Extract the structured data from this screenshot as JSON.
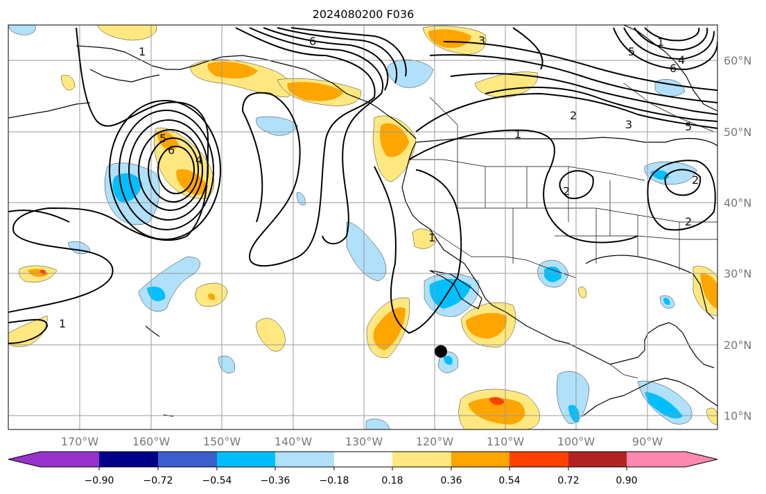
{
  "title": "2024080200 F036",
  "map": {
    "lon_range": [
      -180,
      -80
    ],
    "lat_range": [
      8,
      65
    ],
    "lon_ticks": [
      {
        "value": -170,
        "label": "170°W"
      },
      {
        "value": -160,
        "label": "160°W"
      },
      {
        "value": -150,
        "label": "150°W"
      },
      {
        "value": -140,
        "label": "140°W"
      },
      {
        "value": -130,
        "label": "130°W"
      },
      {
        "value": -120,
        "label": "120°W"
      },
      {
        "value": -110,
        "label": "110°W"
      },
      {
        "value": -100,
        "label": "100°W"
      },
      {
        "value": -90,
        "label": "90°W"
      }
    ],
    "lat_ticks": [
      {
        "value": 10,
        "label": "10°N"
      },
      {
        "value": 20,
        "label": "20°N"
      },
      {
        "value": 30,
        "label": "30°N"
      },
      {
        "value": 40,
        "label": "40°N"
      },
      {
        "value": 50,
        "label": "50°N"
      },
      {
        "value": 60,
        "label": "60°N"
      }
    ],
    "marker": {
      "lon": -119,
      "lat": 19,
      "color": "#000000"
    },
    "contour_labels": [
      "6",
      "3",
      "1",
      "5",
      "6",
      "4",
      "1",
      "5",
      "4",
      "6",
      "2",
      "3",
      "1",
      "5",
      "2",
      "2",
      "2",
      "1",
      "1"
    ]
  },
  "colorbar": {
    "levels": [
      "−0.90",
      "−0.72",
      "−0.54",
      "−0.36",
      "−0.18",
      "0.18",
      "0.36",
      "0.54",
      "0.72",
      "0.90"
    ],
    "colors": [
      "#9932cc",
      "#00008b",
      "#3a5fcd",
      "#00bfff",
      "#b0e0fa",
      "#ffffff",
      "#ffe880",
      "#ffa500",
      "#ff4000",
      "#b22222",
      "#ff88b0"
    ]
  }
}
